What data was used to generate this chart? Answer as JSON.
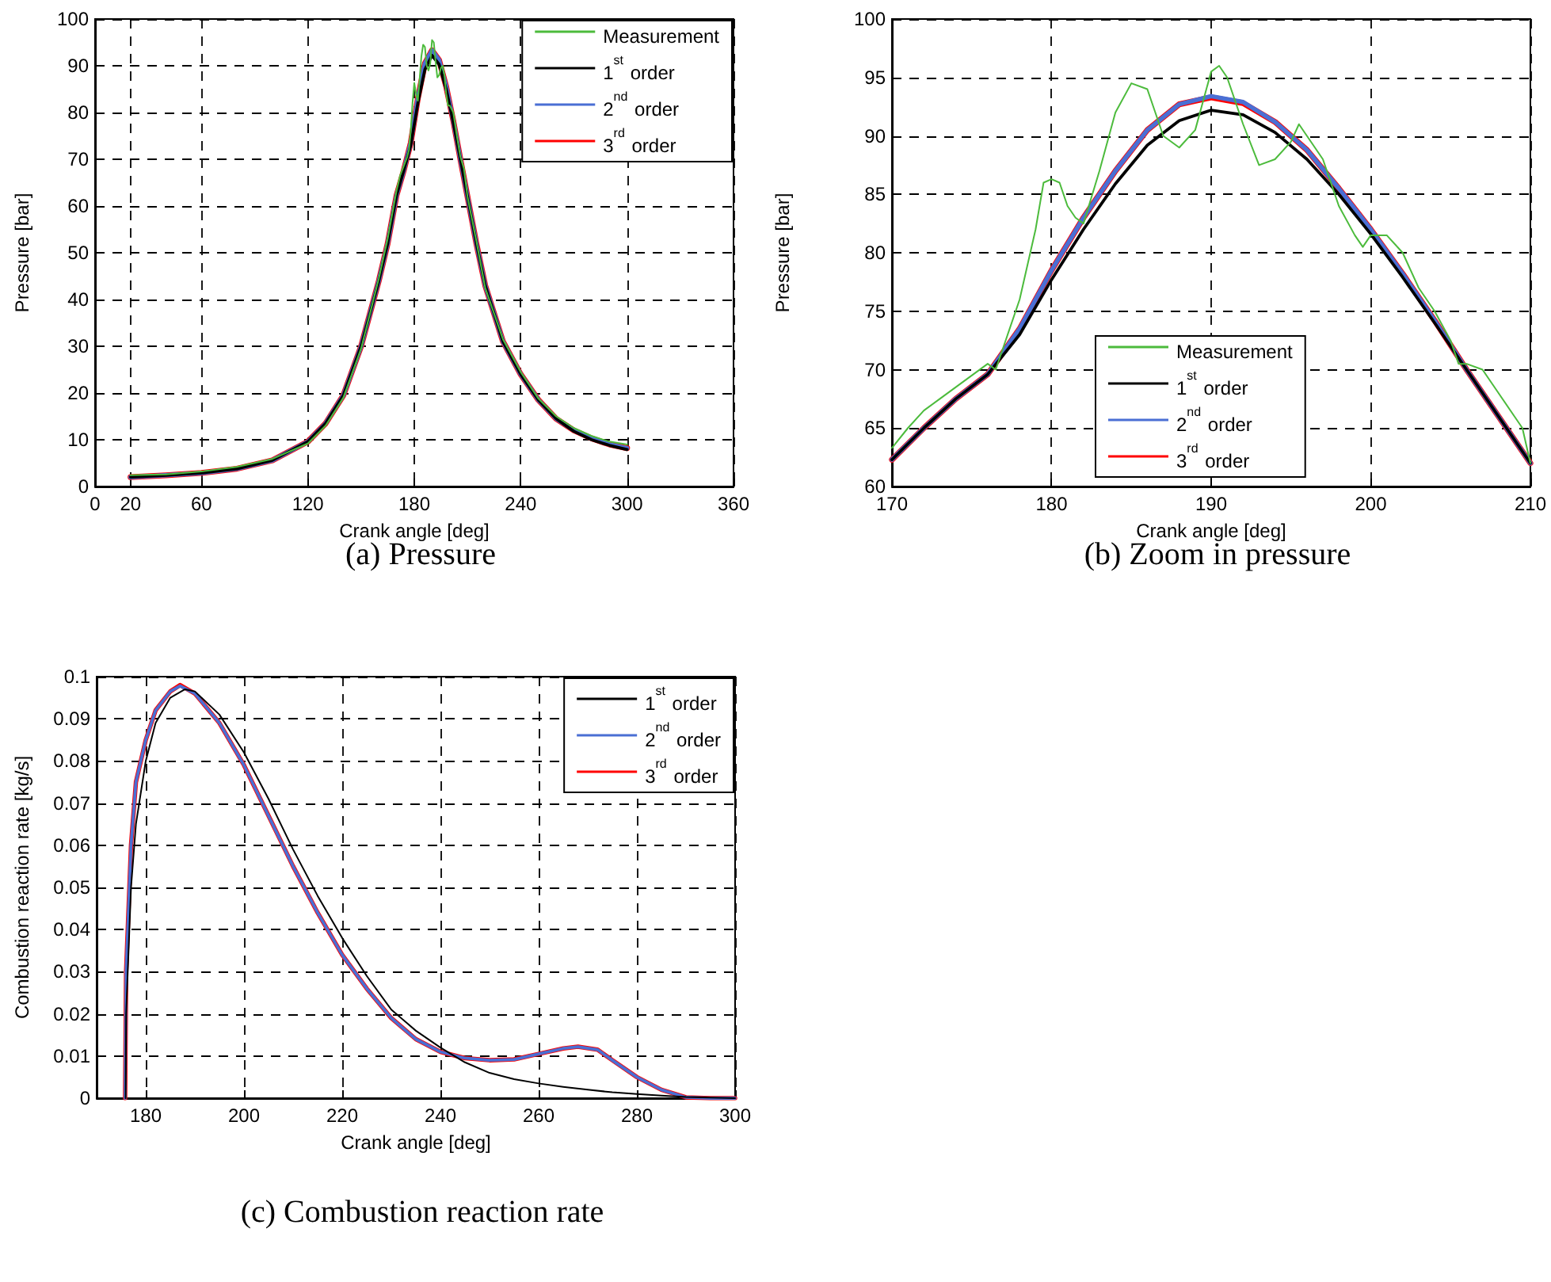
{
  "chart_data": [
    {
      "type": "line",
      "title": "(a) Pressure",
      "xlabel": "Crank angle [deg]",
      "ylabel": "Pressure [bar]",
      "xlim": [
        0,
        360
      ],
      "xticks": [
        0,
        20,
        60,
        120,
        180,
        240,
        300,
        360
      ],
      "ylim": [
        0,
        100
      ],
      "yticks": [
        0,
        10,
        20,
        30,
        40,
        50,
        60,
        70,
        80,
        90,
        100
      ],
      "grid": true,
      "legend": "top right",
      "marker": "none",
      "line_style": "solid",
      "series": [
        {
          "name": "Measurement",
          "color": "#4cbb3c",
          "x": [
            20,
            40,
            60,
            80,
            100,
            120,
            130,
            140,
            150,
            160,
            165,
            170,
            172,
            174,
            176,
            177,
            178,
            179,
            180,
            181,
            182,
            183,
            184,
            185,
            186,
            187,
            188,
            189,
            190,
            191,
            192,
            193,
            194,
            195,
            196,
            197,
            198,
            199,
            200,
            202,
            204,
            206,
            208,
            210,
            215,
            220,
            230,
            240,
            250,
            260,
            270,
            280,
            290,
            300
          ],
          "values": [
            2.4,
            2.6,
            3.2,
            4.2,
            5.9,
            9.2,
            13,
            19,
            29.5,
            44.5,
            53,
            63.3,
            66.5,
            68.5,
            70.5,
            72,
            76,
            82,
            86.3,
            84,
            82.5,
            87,
            92,
            94.5,
            94,
            90,
            89,
            90.5,
            95.5,
            95,
            91,
            87.5,
            88,
            89.5,
            90,
            88,
            84,
            81.5,
            81.5,
            80,
            75,
            70.5,
            68,
            62,
            52.5,
            42.5,
            31.5,
            24.5,
            18.8,
            15,
            12.5,
            10.8,
            9.6,
            9
          ]
        },
        {
          "name": "1$^{st}$ order",
          "color": "#000000",
          "x": [
            20,
            40,
            60,
            80,
            100,
            120,
            130,
            140,
            150,
            160,
            165,
            170,
            174,
            178,
            182,
            186,
            190,
            194,
            198,
            202,
            206,
            210,
            215,
            220,
            230,
            240,
            250,
            260,
            270,
            280,
            290,
            300
          ],
          "values": [
            2,
            2.4,
            2.9,
            3.8,
            5.6,
            9.6,
            13.5,
            19.5,
            30,
            44,
            52,
            62.3,
            67.5,
            73,
            82,
            89.2,
            92.2,
            90.3,
            85,
            77.9,
            70,
            62,
            52,
            43,
            31,
            24,
            18.5,
            14.5,
            11.8,
            10,
            8.8,
            7.9
          ]
        },
        {
          "name": "2$^{nd}$ order",
          "color": "#4a6fd4",
          "x": [
            20,
            40,
            60,
            80,
            100,
            120,
            130,
            140,
            150,
            160,
            165,
            170,
            174,
            178,
            182,
            186,
            190,
            194,
            198,
            202,
            206,
            210,
            215,
            220,
            230,
            240,
            250,
            260,
            270,
            280,
            290,
            300
          ],
          "values": [
            2,
            2.4,
            2.9,
            3.8,
            5.6,
            9.6,
            13.5,
            19.5,
            30,
            44,
            52,
            62.3,
            67.5,
            73.5,
            83,
            90.5,
            93.3,
            91.2,
            85.5,
            78.2,
            70,
            62,
            52,
            43,
            31,
            24,
            18.5,
            14.5,
            12,
            10.3,
            9,
            8.2
          ]
        },
        {
          "name": "3$^{rd}$ order",
          "color": "#ff0000",
          "x": [
            20,
            40,
            60,
            80,
            100,
            120,
            130,
            140,
            150,
            160,
            165,
            170,
            174,
            178,
            182,
            186,
            190,
            194,
            198,
            202,
            206,
            210,
            215,
            220,
            230,
            240,
            250,
            260,
            270,
            280,
            290,
            300
          ],
          "values": [
            2,
            2.4,
            2.9,
            3.8,
            5.6,
            9.6,
            13.5,
            19.5,
            30,
            44,
            52,
            62.3,
            67.5,
            73.5,
            83,
            90.5,
            93.3,
            91.2,
            85.5,
            78.2,
            70,
            62,
            52,
            43,
            31,
            24,
            18.5,
            14.5,
            12,
            10.3,
            9,
            8.2
          ]
        }
      ]
    },
    {
      "type": "line",
      "title": "(b) Zoom in pressure",
      "xlabel": "Crank angle [deg]",
      "ylabel": "Pressure [bar]",
      "xlim": [
        170,
        210
      ],
      "xticks": [
        170,
        180,
        190,
        200,
        210
      ],
      "ylim": [
        60,
        100
      ],
      "yticks": [
        60,
        65,
        70,
        75,
        80,
        85,
        90,
        95,
        100
      ],
      "grid": true,
      "legend": "bottom",
      "marker": "none",
      "line_style": "solid",
      "series": [
        {
          "name": "Measurement",
          "color": "#4cbb3c",
          "x": [
            170,
            171,
            172,
            173,
            174,
            175,
            176,
            176.5,
            177,
            178,
            179,
            179.5,
            180,
            180.5,
            181,
            181.5,
            182,
            183,
            184,
            185,
            186,
            186.5,
            187,
            188,
            189,
            189.5,
            190,
            190.5,
            191,
            192,
            193,
            194,
            195,
            195.5,
            196,
            197,
            198,
            199,
            199.5,
            200,
            201,
            202,
            203,
            204,
            205,
            205.5,
            206,
            207,
            208,
            209,
            209.5,
            210
          ],
          "values": [
            63.3,
            65,
            66.5,
            67.5,
            68.5,
            69.5,
            70.5,
            70,
            72,
            76,
            82,
            86,
            86.3,
            86,
            84,
            83,
            82.5,
            87,
            92,
            94.5,
            94,
            92,
            90,
            89,
            90.5,
            93,
            95.5,
            96,
            95,
            91,
            87.5,
            88,
            89.5,
            91,
            90,
            88,
            84,
            81.5,
            80.5,
            81.5,
            81.5,
            80,
            77,
            75,
            72.5,
            70.5,
            70.5,
            70,
            68,
            66,
            65,
            62
          ]
        },
        {
          "name": "1$^{st}$ order",
          "color": "#000000",
          "x": [
            170,
            172,
            174,
            176,
            178,
            180,
            182,
            184,
            186,
            188,
            190,
            192,
            194,
            196,
            198,
            200,
            202,
            204,
            206,
            208,
            210
          ],
          "values": [
            62.3,
            65,
            67.5,
            69.6,
            73,
            77.7,
            82,
            85.9,
            89.2,
            91.3,
            92.2,
            91.8,
            90.3,
            88,
            85,
            81.6,
            77.9,
            74,
            70,
            66,
            62
          ]
        },
        {
          "name": "2$^{nd}$ order",
          "color": "#4a6fd4",
          "x": [
            170,
            172,
            174,
            176,
            178,
            180,
            182,
            184,
            186,
            188,
            190,
            192,
            194,
            196,
            198,
            200,
            202,
            204,
            206,
            208,
            210
          ],
          "values": [
            62.3,
            65,
            67.5,
            69.6,
            73.5,
            78.5,
            83,
            87,
            90.5,
            92.7,
            93.4,
            92.9,
            91.2,
            88.8,
            85.5,
            82,
            78.2,
            74.2,
            70,
            66,
            62
          ]
        },
        {
          "name": "3$^{rd}$ order",
          "color": "#ff0000",
          "x": [
            170,
            172,
            174,
            176,
            178,
            180,
            182,
            184,
            186,
            188,
            190,
            192,
            194,
            196,
            198,
            200,
            202,
            204,
            206,
            208,
            210
          ],
          "values": [
            62.3,
            65,
            67.5,
            69.6,
            73.5,
            78.5,
            83,
            87,
            90.5,
            92.7,
            93.3,
            92.8,
            91.2,
            88.8,
            85.5,
            82,
            78.2,
            74.2,
            70,
            66,
            62
          ]
        }
      ]
    },
    {
      "type": "line",
      "title": "(c) Combustion reaction rate",
      "xlabel": "Crank angle [deg]",
      "ylabel": "Combustion reaction rate [kg/s]",
      "xlim": [
        170,
        300
      ],
      "xticks": [
        180,
        200,
        220,
        240,
        260,
        280,
        300
      ],
      "ylim": [
        0,
        0.1
      ],
      "yticks": [
        0,
        0.01,
        0.02,
        0.03,
        0.04,
        0.05,
        0.06,
        0.07,
        0.08,
        0.09,
        0.1
      ],
      "grid": true,
      "legend": "top right",
      "marker": "none",
      "line_style": "solid",
      "series": [
        {
          "name": "1$^{st}$ order",
          "color": "#000000",
          "x": [
            175.9,
            176,
            177,
            178,
            180,
            182,
            185,
            188,
            190,
            195,
            200,
            205,
            210,
            215,
            220,
            225,
            230,
            235,
            240,
            245,
            250,
            255,
            260,
            265,
            270,
            275,
            280,
            285,
            290,
            300
          ],
          "values": [
            0,
            0.02,
            0.05,
            0.065,
            0.08,
            0.089,
            0.095,
            0.097,
            0.0965,
            0.091,
            0.082,
            0.071,
            0.059,
            0.048,
            0.038,
            0.029,
            0.021,
            0.016,
            0.012,
            0.0085,
            0.006,
            0.0045,
            0.0035,
            0.0027,
            0.002,
            0.0014,
            0.001,
            0.0006,
            0.0003,
            0
          ]
        },
        {
          "name": "2$^{nd}$ order",
          "color": "#4a6fd4",
          "x": [
            175.8,
            176,
            177,
            178,
            180,
            182,
            185,
            187,
            190,
            195,
            200,
            205,
            210,
            215,
            220,
            225,
            230,
            235,
            240,
            245,
            250,
            255,
            260,
            265,
            268,
            272,
            275,
            280,
            285,
            290,
            295,
            300
          ],
          "values": [
            0,
            0.03,
            0.06,
            0.075,
            0.085,
            0.092,
            0.0965,
            0.0978,
            0.096,
            0.089,
            0.079,
            0.067,
            0.055,
            0.044,
            0.034,
            0.026,
            0.019,
            0.014,
            0.011,
            0.0095,
            0.009,
            0.0092,
            0.0105,
            0.0118,
            0.0122,
            0.0115,
            0.009,
            0.005,
            0.002,
            0.0002,
            0,
            0
          ]
        },
        {
          "name": "3$^{rd}$ order",
          "color": "#ff0000",
          "x": [
            175.8,
            176,
            177,
            178,
            180,
            182,
            185,
            187,
            190,
            195,
            200,
            205,
            210,
            215,
            220,
            225,
            230,
            235,
            240,
            245,
            250,
            255,
            260,
            265,
            268,
            272,
            275,
            280,
            285,
            290,
            295,
            300
          ],
          "values": [
            0,
            0.03,
            0.06,
            0.075,
            0.085,
            0.092,
            0.0965,
            0.098,
            0.096,
            0.089,
            0.079,
            0.067,
            0.055,
            0.044,
            0.034,
            0.026,
            0.019,
            0.014,
            0.011,
            0.0095,
            0.009,
            0.0092,
            0.0105,
            0.0118,
            0.0122,
            0.0115,
            0.009,
            0.005,
            0.002,
            0.0002,
            0,
            0
          ]
        }
      ]
    }
  ]
}
